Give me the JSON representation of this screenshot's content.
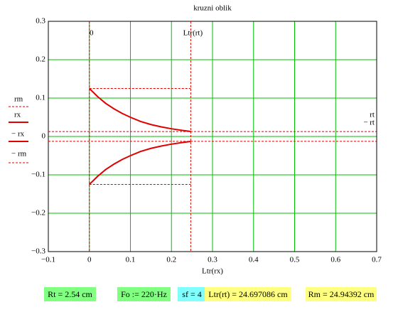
{
  "chart_data": {
    "type": "line",
    "title": "kruzni oblik",
    "x_label": "Ltr(rx)",
    "xlim": [
      -0.1,
      0.7
    ],
    "ylim": [
      -0.3,
      0.3
    ],
    "xticks": [
      {
        "value": -0.1,
        "label": "−0.1"
      },
      0,
      0.1,
      0.2,
      0.3,
      0.4,
      0.5,
      0.6,
      0.7
    ],
    "yticks": [
      {
        "value": -0.3,
        "label": "−0.3"
      },
      {
        "value": -0.2,
        "label": "−0.2"
      },
      {
        "value": -0.1,
        "label": "−0.1"
      },
      0,
      0.1,
      0.2,
      0.3
    ],
    "grid": true,
    "grid_color": "#00c000",
    "series": [
      {
        "name": "rm",
        "color": "#e00000",
        "dashed": true,
        "x": [
          0,
          0.247
        ],
        "values": [
          0.125,
          0.125
        ]
      },
      {
        "name": "rx",
        "color": "#e00000",
        "dashed": false,
        "x": [
          0,
          0.02,
          0.04,
          0.06,
          0.08,
          0.1,
          0.125,
          0.15,
          0.175,
          0.2,
          0.225,
          0.247
        ],
        "values": [
          0.125,
          0.104,
          0.086,
          0.072,
          0.06,
          0.05,
          0.039,
          0.031,
          0.025,
          0.02,
          0.016,
          0.013
        ]
      },
      {
        "name": "− rx",
        "color": "#e00000",
        "dashed": false,
        "x": [
          0,
          0.02,
          0.04,
          0.06,
          0.08,
          0.1,
          0.125,
          0.15,
          0.175,
          0.2,
          0.225,
          0.247
        ],
        "values": [
          -0.125,
          -0.104,
          -0.086,
          -0.072,
          -0.06,
          -0.05,
          -0.039,
          -0.031,
          -0.025,
          -0.02,
          -0.016,
          -0.013
        ]
      },
      {
        "name": "− rm",
        "color": "#e00000",
        "dashed": true,
        "x": [
          0,
          0.247
        ],
        "values": [
          -0.125,
          -0.125
        ]
      },
      {
        "name": "rt",
        "color": "#e00000",
        "dashed": true,
        "x": [
          -0.1,
          0.7
        ],
        "values": [
          0.0127,
          0.0127
        ]
      },
      {
        "name": "− rt",
        "color": "#e00000",
        "dashed": true,
        "x": [
          -0.1,
          0.7
        ],
        "values": [
          -0.0127,
          -0.0127
        ]
      }
    ],
    "markers": [
      {
        "label": "0",
        "value": 0
      },
      {
        "label": "Ltr(rt)",
        "value": 0.247
      }
    ]
  },
  "footer": [
    {
      "text": "Rt = 2.54 cm",
      "color": "#80ff80"
    },
    {
      "text": "Fo := 220·Hz",
      "color": "#80ff80"
    },
    {
      "text": "sf = 4",
      "color": "#80ffff"
    },
    {
      "text": "Ltr(rt) = 24.697086 cm",
      "color": "#ffff80"
    },
    {
      "text": "Rm = 24.94392 cm",
      "color": "#ffff80"
    }
  ]
}
